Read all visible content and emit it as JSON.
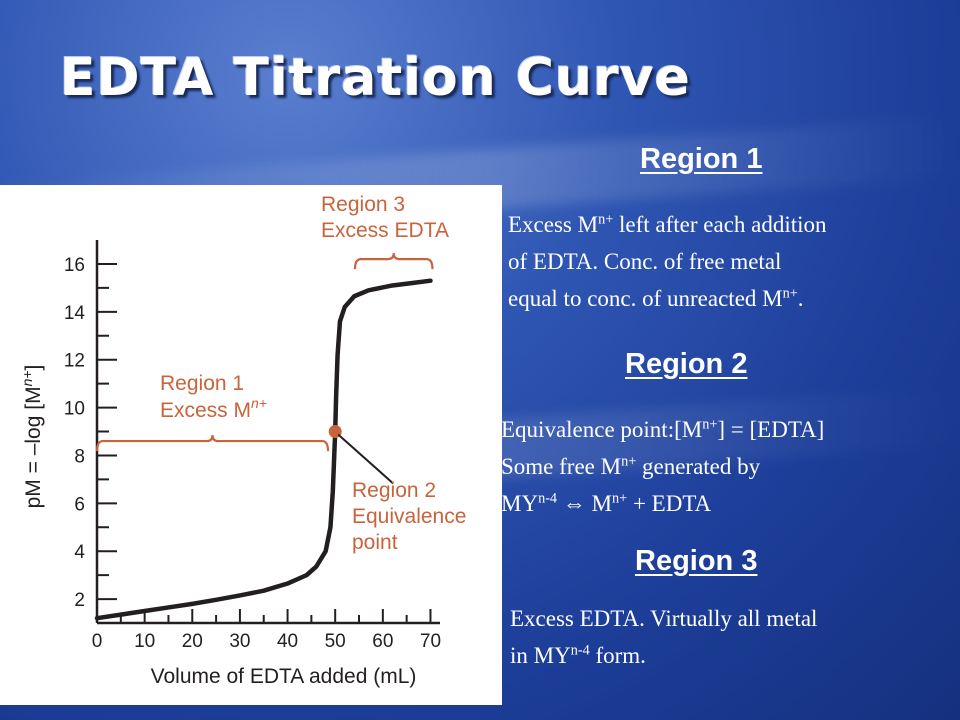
{
  "slide": {
    "title": "EDTA Titration Curve",
    "regions": [
      {
        "heading": "Region 1",
        "lines": [
          [
            "Excess M",
            "n+",
            " left after each addition"
          ],
          [
            "of EDTA. Conc. of free metal"
          ],
          [
            "equal to conc. of unreacted M",
            "n+",
            "."
          ]
        ]
      },
      {
        "heading": "Region 2",
        "lines": [
          [
            "Equivalence point:[M",
            "n+",
            "] = [EDTA]"
          ],
          [
            "Some free M",
            "n+",
            " generated by"
          ],
          [
            "MY",
            "n-4",
            " ⇔ M",
            "n+",
            " + EDTA"
          ]
        ]
      },
      {
        "heading": "Region 3",
        "lines": [
          [
            "Excess EDTA.  Virtually all metal"
          ],
          [
            "in MY",
            "n-4",
            " form."
          ]
        ]
      }
    ]
  },
  "chart_data": {
    "type": "line",
    "xlabel": "Volume of EDTA added (mL)",
    "ylabel_parts": [
      "pM = –log [M",
      "n+",
      "]"
    ],
    "xlim": [
      0,
      72
    ],
    "ylim": [
      1,
      17
    ],
    "x_ticks": [
      0,
      10,
      20,
      30,
      40,
      50,
      60,
      70
    ],
    "y_ticks": [
      2,
      4,
      6,
      8,
      10,
      12,
      14,
      16
    ],
    "curve_color": "#231f20",
    "annotation_color": "#c8643c",
    "series": [
      {
        "points": [
          [
            0,
            1.2
          ],
          [
            5,
            1.35
          ],
          [
            10,
            1.5
          ],
          [
            15,
            1.65
          ],
          [
            20,
            1.8
          ],
          [
            25,
            1.97
          ],
          [
            30,
            2.15
          ],
          [
            35,
            2.35
          ],
          [
            40,
            2.65
          ],
          [
            44,
            3.0
          ],
          [
            46,
            3.35
          ],
          [
            48,
            4.0
          ],
          [
            49,
            5.0
          ],
          [
            49.5,
            6.5
          ],
          [
            49.8,
            8.0
          ],
          [
            50,
            9.0
          ],
          [
            50.2,
            10.5
          ],
          [
            50.5,
            12.2
          ],
          [
            51,
            13.6
          ],
          [
            52,
            14.2
          ],
          [
            54,
            14.65
          ],
          [
            57,
            14.9
          ],
          [
            62,
            15.1
          ],
          [
            66,
            15.2
          ],
          [
            70,
            15.3
          ]
        ]
      }
    ],
    "equivalence_point": [
      50,
      9.0
    ],
    "annotations": [
      {
        "lines": [
          "Region 3",
          "Excess EDTA"
        ],
        "x_range": [
          55,
          70
        ],
        "bracket_y": 16.2
      },
      {
        "lines_parts": [
          [
            "Region 1"
          ],
          [
            "Excess M",
            "n+"
          ]
        ],
        "x_range": [
          0,
          48.5
        ],
        "bracket_y": 8.6
      },
      {
        "lines": [
          "Region 2",
          "Equivalence",
          "point"
        ]
      }
    ]
  }
}
